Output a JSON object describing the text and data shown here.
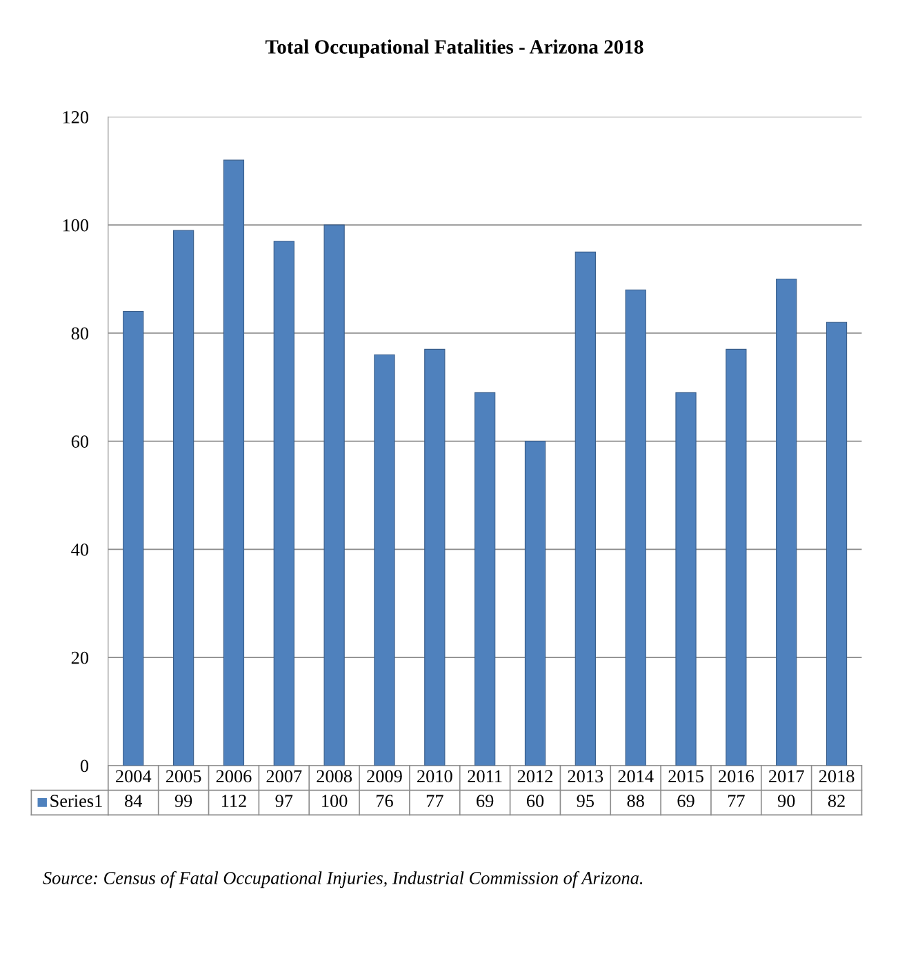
{
  "chart_data": {
    "type": "bar",
    "title": "Total Occupational Fatalities - Arizona 2018",
    "categories": [
      "2004",
      "2005",
      "2006",
      "2007",
      "2008",
      "2009",
      "2010",
      "2011",
      "2012",
      "2013",
      "2014",
      "2015",
      "2016",
      "2017",
      "2018"
    ],
    "series": [
      {
        "name": "Series1",
        "color": "#4f81bd",
        "values": [
          84,
          99,
          112,
          97,
          100,
          76,
          77,
          69,
          60,
          95,
          88,
          69,
          77,
          90,
          82
        ]
      }
    ],
    "ylim": [
      0,
      120
    ],
    "yticks": [
      0,
      20,
      40,
      60,
      80,
      100,
      120
    ],
    "grid": "y",
    "data_labels": true,
    "annotations": [
      "Source: Census of Fatal Occupational Injuries, Industrial Commission of Arizona."
    ]
  }
}
